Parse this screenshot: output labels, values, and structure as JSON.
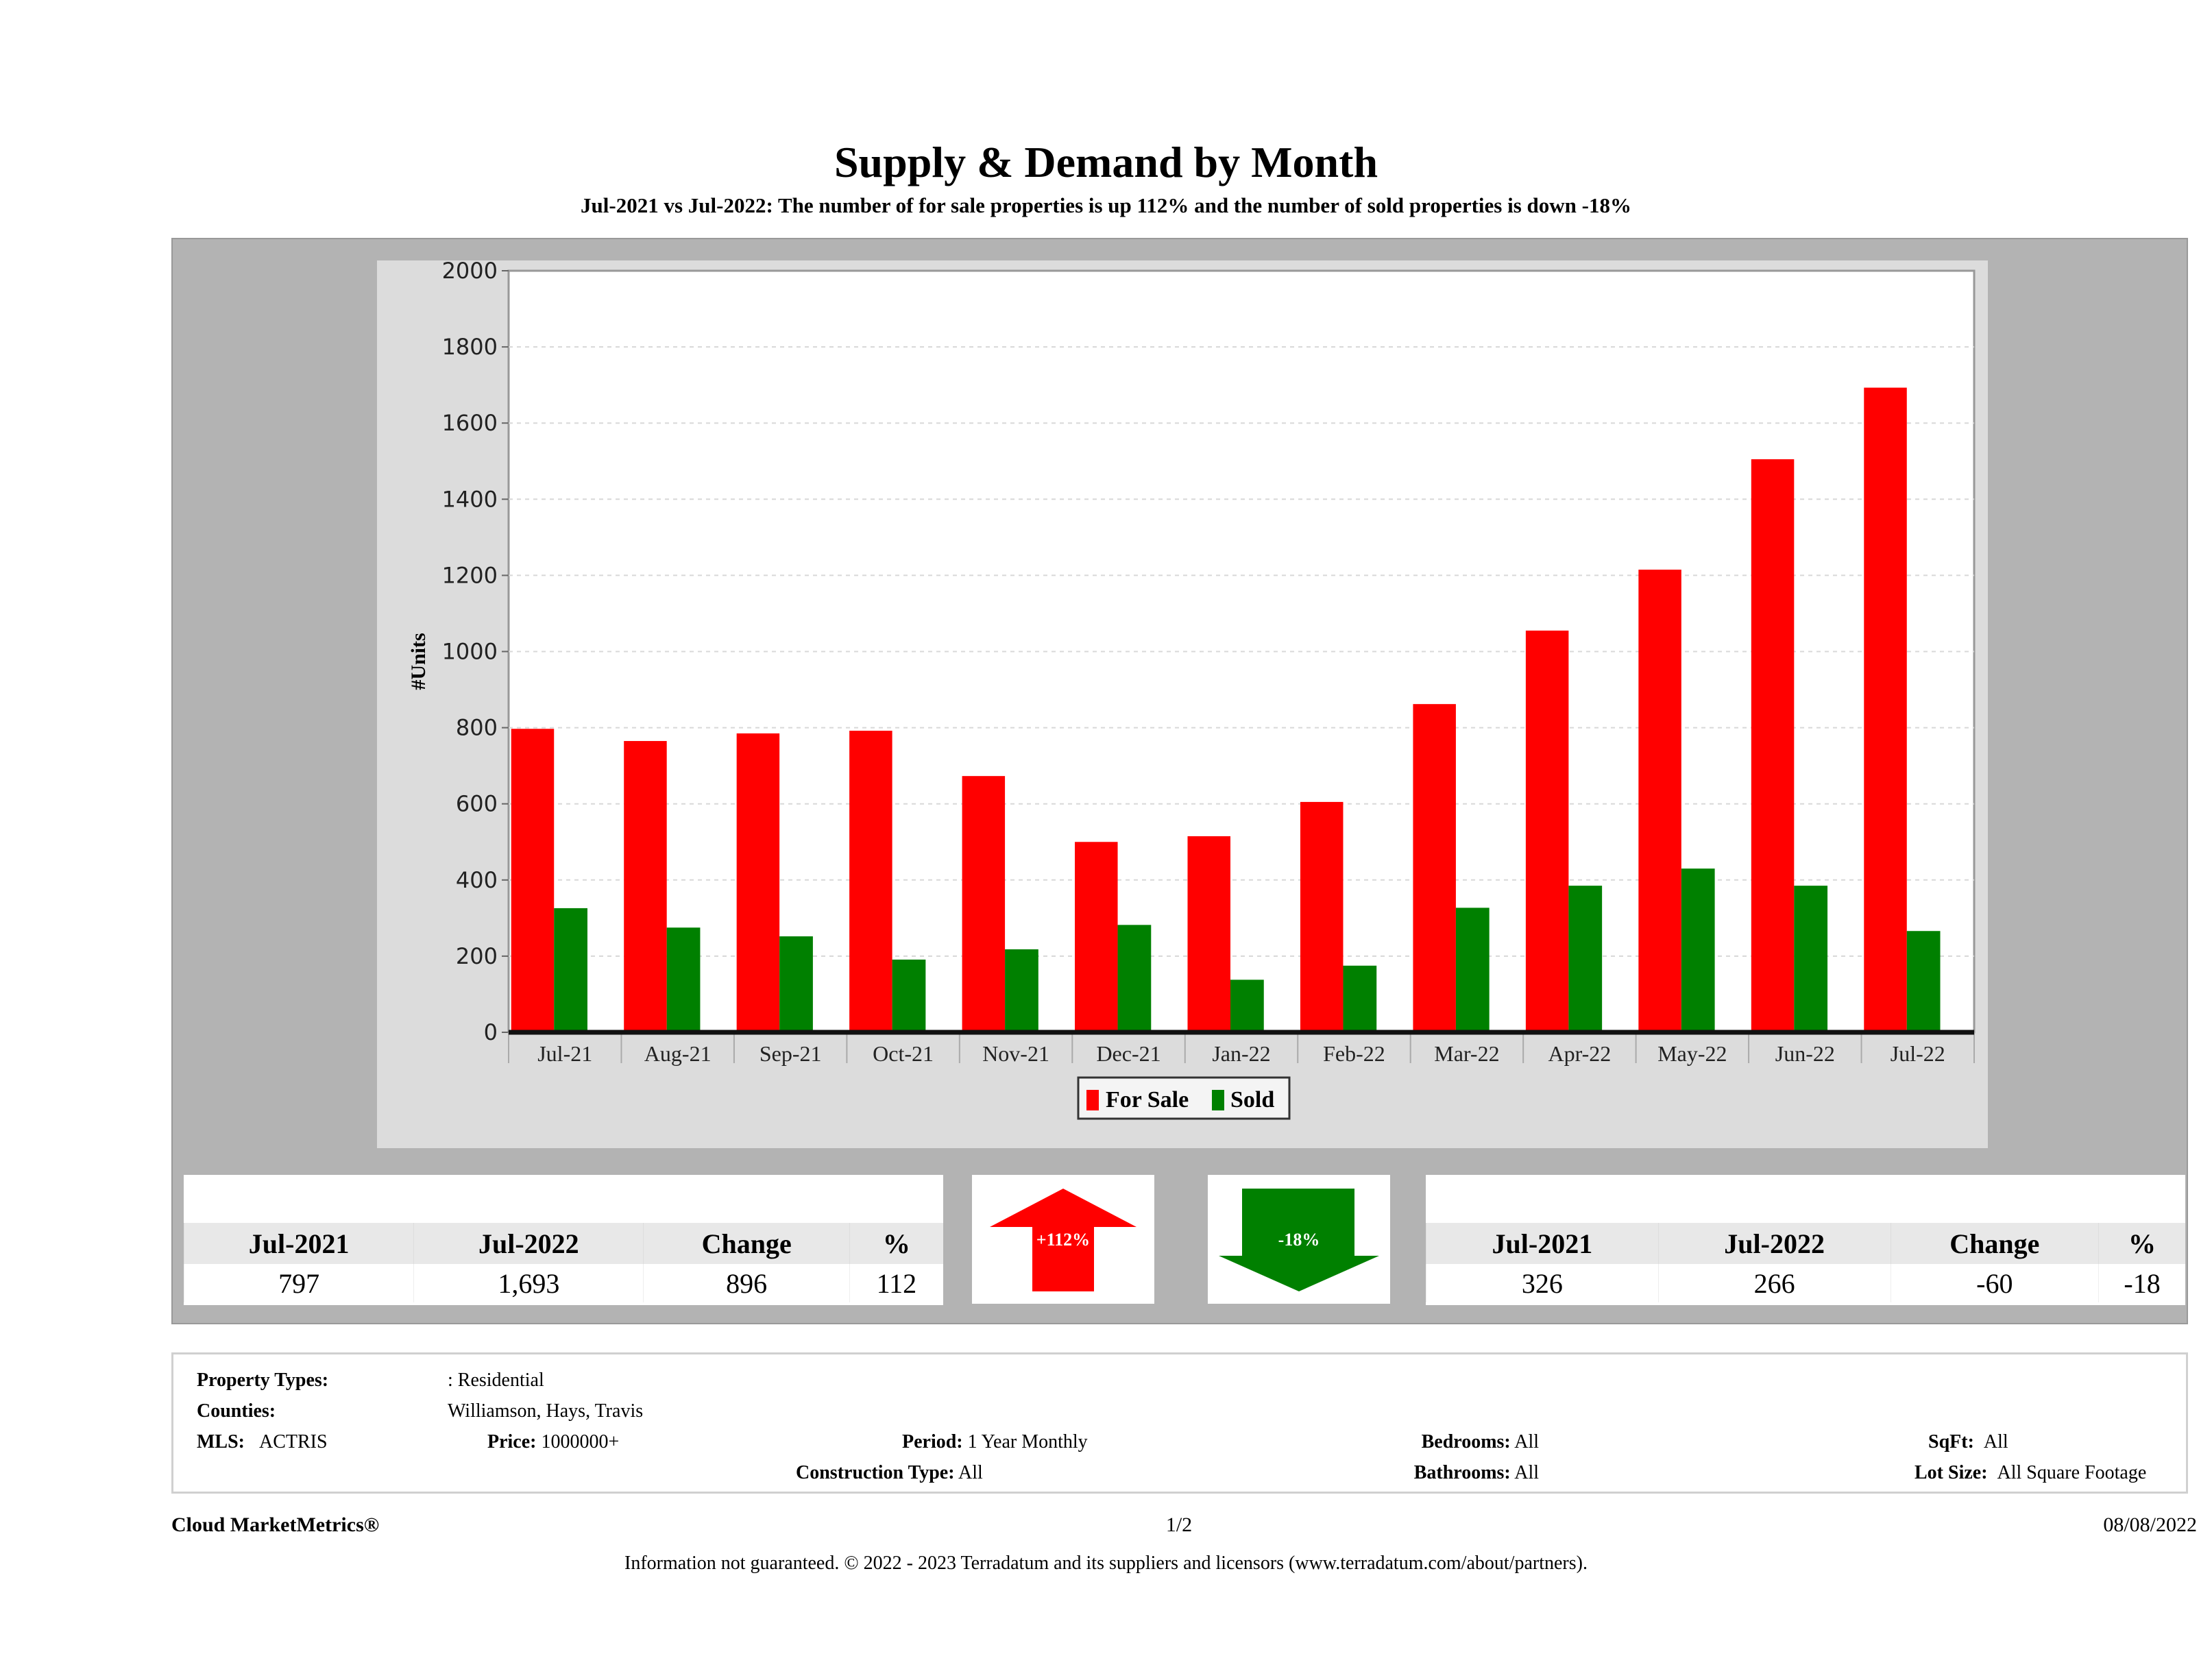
{
  "header": {
    "title": "Supply & Demand by Month",
    "subtitle": "Jul-2021 vs Jul-2022: The number of for sale properties is up 112% and the number of sold properties is down -18%"
  },
  "chart_data": {
    "type": "bar",
    "title": "Supply & Demand by Month",
    "xlabel": "",
    "ylabel": "#Units",
    "ylim": [
      0,
      2000
    ],
    "yticks": [
      0,
      200,
      400,
      600,
      800,
      1000,
      1200,
      1400,
      1600,
      1800,
      2000
    ],
    "grid": true,
    "legend_position": "bottom-center",
    "categories": [
      "Jul-21",
      "Aug-21",
      "Sep-21",
      "Oct-21",
      "Nov-21",
      "Dec-21",
      "Jan-22",
      "Feb-22",
      "Mar-22",
      "Apr-22",
      "May-22",
      "Jun-22",
      "Jul-22"
    ],
    "series": [
      {
        "name": "For Sale",
        "color": "#ff0000",
        "values": [
          797,
          765,
          785,
          792,
          673,
          500,
          515,
          605,
          862,
          1055,
          1215,
          1505,
          1693
        ]
      },
      {
        "name": "Sold",
        "color": "#008000",
        "values": [
          326,
          275,
          252,
          191,
          218,
          282,
          138,
          175,
          327,
          385,
          430,
          385,
          266
        ]
      }
    ]
  },
  "for_sale_summary": {
    "headers": [
      "Jul-2021",
      "Jul-2022",
      "Change",
      "%"
    ],
    "values": [
      "797",
      "1,693",
      "896",
      "112"
    ],
    "arrow_label": "+112%",
    "arrow_direction": "up",
    "arrow_color": "#ff0000"
  },
  "sold_summary": {
    "headers": [
      "Jul-2021",
      "Jul-2022",
      "Change",
      "%"
    ],
    "values": [
      "326",
      "266",
      "-60",
      "-18"
    ],
    "arrow_label": "-18%",
    "arrow_direction": "down",
    "arrow_color": "#008000"
  },
  "criteria": {
    "property_types_label": "Property Types:",
    "property_types_value": ": Residential",
    "counties_label": "Counties:",
    "counties_value": "Williamson, Hays, Travis",
    "mls_label": "MLS:",
    "mls_value": "ACTRIS",
    "price_label": "Price:",
    "price_value": "1000000+",
    "period_label": "Period:",
    "period_value": "1 Year Monthly",
    "construction_label": "Construction Type:",
    "construction_value": "All",
    "bedrooms_label": "Bedrooms:",
    "bedrooms_value": "All",
    "bathrooms_label": "Bathrooms:",
    "bathrooms_value": "All",
    "sqft_label": "SqFt:",
    "sqft_value": "All",
    "lotsize_label": "Lot Size:",
    "lotsize_value": "All Square Footage"
  },
  "footer": {
    "brand": "Cloud MarketMetrics®",
    "page": "1/2",
    "date": "08/08/2022",
    "disclaimer": "Information not guaranteed. © 2022 - 2023 Terradatum and its suppliers and licensors (www.terradatum.com/about/partners)."
  }
}
